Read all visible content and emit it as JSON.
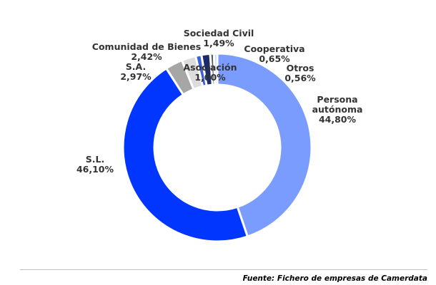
{
  "chart_data": {
    "type": "pie",
    "variant": "donut",
    "title": "",
    "slices": [
      {
        "name": "Persona autónoma",
        "label_lines": [
          "Persona",
          "autónoma"
        ],
        "value": 44.8,
        "value_label": "44,80%",
        "color": "#7a9cff"
      },
      {
        "name": "S.L.",
        "label_lines": [
          "S.L."
        ],
        "value": 46.1,
        "value_label": "46,10%",
        "color": "#0036ff"
      },
      {
        "name": "S.A.",
        "label_lines": [
          "S.A."
        ],
        "value": 2.97,
        "value_label": "2,97%",
        "color": "#a6a6a6"
      },
      {
        "name": "Comunidad de Bienes",
        "label_lines": [
          "Comunidad de Bienes"
        ],
        "value": 2.42,
        "value_label": "2,42%",
        "color": "#dcdcdc"
      },
      {
        "name": "Asociación",
        "label_lines": [
          "Asociación"
        ],
        "value": 1.0,
        "value_label": "1,00%",
        "color": "#3a5fd9"
      },
      {
        "name": "Sociedad Civil",
        "label_lines": [
          "Sociedad Civil"
        ],
        "value": 1.49,
        "value_label": "1,49%",
        "color": "#1a2a6c"
      },
      {
        "name": "Cooperativa",
        "label_lines": [
          "Cooperativa"
        ],
        "value": 0.65,
        "value_label": "0,65%",
        "color": "#5c5c5c"
      },
      {
        "name": "Otros",
        "label_lines": [
          "Otros"
        ],
        "value": 0.56,
        "value_label": "0,56%",
        "color": "#c8d6ff"
      }
    ],
    "legend": "none"
  },
  "source_note": "Fuente: Fichero de empresas de Camerdata"
}
